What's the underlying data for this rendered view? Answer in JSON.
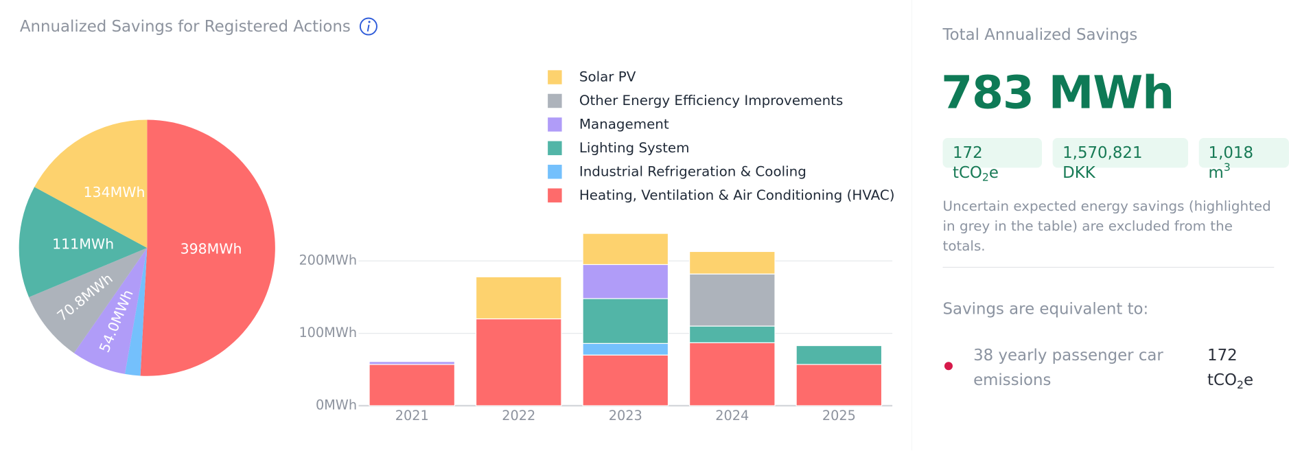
{
  "header": {
    "title": "Annualized Savings for Registered Actions"
  },
  "chart_data": [
    {
      "type": "pie",
      "values": [
        398,
        15.2,
        54.0,
        70.8,
        111,
        134
      ],
      "value_labels": [
        "398MWh",
        null,
        "54.0MWh",
        "70.8MWh",
        "111MWh",
        "134MWh"
      ],
      "colors": [
        "#fe6b6b",
        "#74c0fc",
        "#b09cf8",
        "#adb3bb",
        "#52b5a7",
        "#fdd26e"
      ]
    },
    {
      "type": "bar",
      "stacked": true,
      "categories": [
        "2021",
        "2022",
        "2023",
        "2024",
        "2025"
      ],
      "series": [
        {
          "name": "Solar PV",
          "color": "#fdd26e",
          "values": [
            null,
            58,
            43,
            31,
            null
          ]
        },
        {
          "name": "Other Energy Efficiency Improvements",
          "color": "#adb3bb",
          "values": [
            null,
            null,
            null,
            72,
            null
          ]
        },
        {
          "name": "Management",
          "color": "#b09cf8",
          "values": [
            4,
            null,
            47,
            null,
            null
          ]
        },
        {
          "name": "Lighting System",
          "color": "#52b5a7",
          "values": [
            null,
            null,
            62,
            23,
            26
          ]
        },
        {
          "name": "Industrial Refrigeration & Cooling",
          "color": "#74c0fc",
          "values": [
            null,
            null,
            16,
            null,
            null
          ]
        },
        {
          "name": "Heating, Ventilation & Air Conditioning (HVAC)",
          "color": "#fe6b6b",
          "values": [
            57,
            120,
            70,
            87,
            57
          ]
        }
      ],
      "ylim": [
        0,
        250
      ],
      "yticks": [
        {
          "value": 0,
          "label": "0MWh"
        },
        {
          "value": 100,
          "label": "100MWh"
        },
        {
          "value": 200,
          "label": "200MWh"
        }
      ],
      "grid": true,
      "legend": "top-right"
    }
  ],
  "summary": {
    "title": "Total Annualized Savings",
    "total": "783 MWh",
    "chips": [
      {
        "text": "172 tCO",
        "sub": "2",
        "tail": "e"
      },
      {
        "text": "1,570,821 DKK"
      },
      {
        "text": "1,018 m",
        "sup": "3"
      }
    ],
    "note": "Uncertain expected energy savings (highlighted in grey in the table) are excluded from the totals.",
    "equivalent_title": "Savings are equivalent to:",
    "equivalents": [
      {
        "label": "38 yearly passenger car emissions",
        "amount": {
          "text": "172 tCO",
          "sub": "2",
          "tail": "e"
        }
      }
    ]
  }
}
